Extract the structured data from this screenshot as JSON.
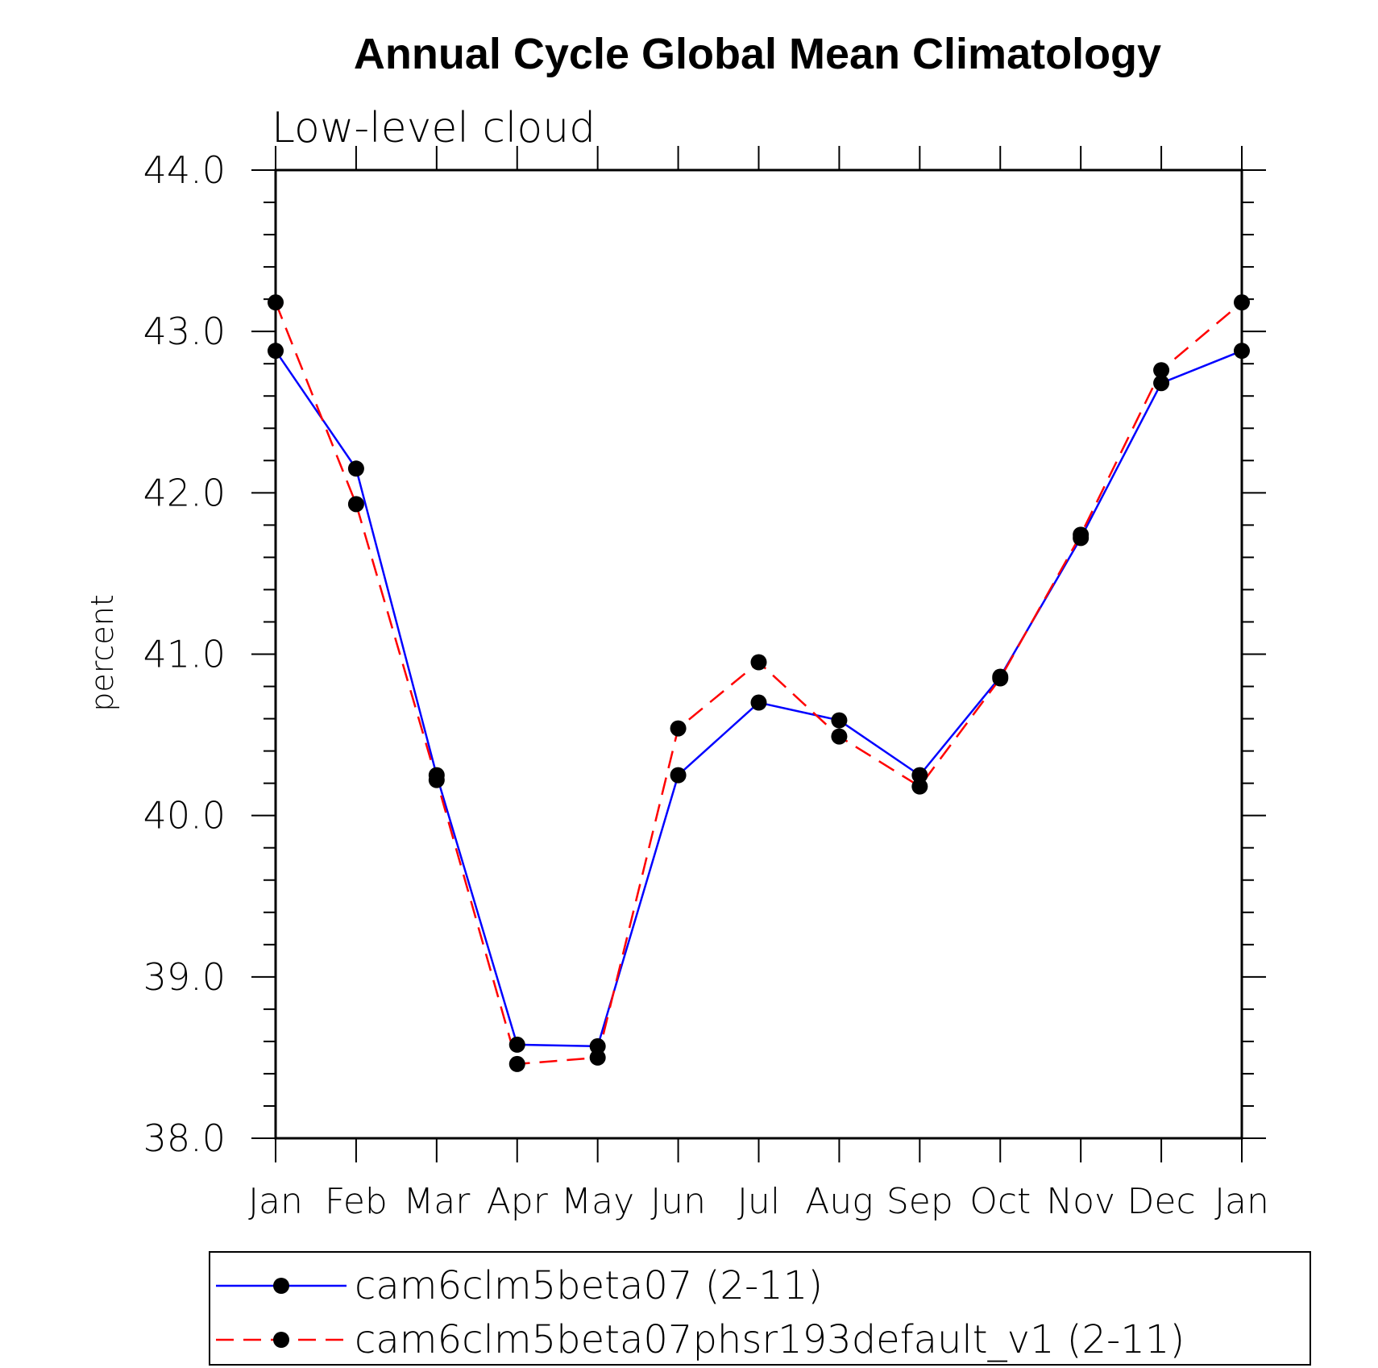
{
  "chart_data": {
    "type": "line",
    "title": "Annual Cycle Global Mean Climatology",
    "subtitle": "Low-level cloud",
    "xlabel": "",
    "ylabel": "percent",
    "ylim": [
      38.0,
      44.0
    ],
    "yticks": [
      "38.0",
      "39.0",
      "40.0",
      "41.0",
      "42.0",
      "43.0",
      "44.0"
    ],
    "categories": [
      "Jan",
      "Feb",
      "Mar",
      "Apr",
      "May",
      "Jun",
      "Jul",
      "Aug",
      "Sep",
      "Oct",
      "Nov",
      "Dec",
      "Jan"
    ],
    "series": [
      {
        "name": "cam6clm5beta07 (2-11)",
        "color": "#0000ff",
        "dash": "solid",
        "values": [
          42.88,
          42.15,
          40.25,
          38.58,
          38.57,
          40.25,
          40.7,
          40.59,
          40.25,
          40.86,
          41.72,
          42.68,
          42.88
        ]
      },
      {
        "name": "cam6clm5beta07phsr193default_v1 (2-11)",
        "color": "#ff0000",
        "dash": "dashed",
        "values": [
          43.18,
          41.93,
          40.22,
          38.46,
          38.5,
          40.54,
          40.95,
          40.49,
          40.18,
          40.85,
          41.74,
          42.76,
          43.18
        ]
      }
    ],
    "legend_position": "bottom"
  }
}
